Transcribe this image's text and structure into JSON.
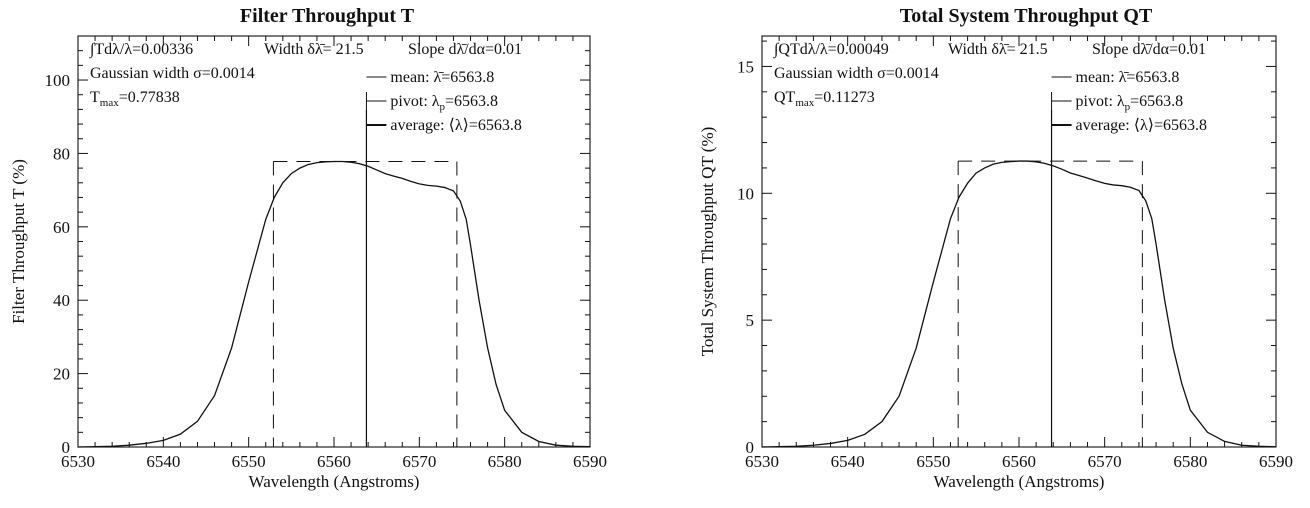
{
  "chart_data": [
    {
      "type": "line",
      "title": "Filter Throughput   T",
      "xlabel": "Wavelength (Angstroms)",
      "ylabel": "Filter Throughput   T   (%)",
      "xlim": [
        6530,
        6590
      ],
      "ylim": [
        0,
        112
      ],
      "x_ticks": [
        6530,
        6540,
        6550,
        6560,
        6570,
        6580,
        6590
      ],
      "y_ticks": [
        0,
        20,
        40,
        60,
        80,
        100
      ],
      "annotations": {
        "integral": "∫Tdλ/λ=0.00336",
        "width": "Width δλ̄=  21.5",
        "slope": "Slope dλ̄/dα=0.01",
        "gaussian": "Gaussian width σ=0.0014",
        "max_prefix": "T",
        "max_sub": "max",
        "max_value": "=0.77838",
        "mean": "mean: λ̄=6563.8",
        "pivot_prefix": "pivot: λ",
        "pivot_sub": "p",
        "pivot_value": "=6563.8",
        "average": "average: ⟨λ⟩=6563.8"
      },
      "markers": {
        "mean": 6563.8,
        "pivot": 6563.8,
        "average": 6563.8,
        "width_low": 6552.9,
        "width_high": 6574.4,
        "width_level": 77.8
      },
      "grid": false,
      "series": [
        {
          "x": [
            6530,
            6534,
            6536,
            6538,
            6540,
            6542,
            6544,
            6546,
            6548,
            6550,
            6552,
            6553,
            6554,
            6555,
            6556,
            6557,
            6558,
            6559,
            6560,
            6561,
            6562,
            6563,
            6564,
            6565,
            6566,
            6567,
            6568,
            6569,
            6570,
            6571,
            6572,
            6573,
            6574,
            6574.8,
            6575.5,
            6576,
            6577,
            6578,
            6579,
            6580,
            6582,
            6584,
            6586,
            6588,
            6590
          ],
          "y": [
            0,
            0.2,
            0.5,
            1.0,
            1.8,
            3.5,
            7.0,
            14,
            27,
            45,
            62,
            68,
            72,
            74.5,
            76,
            77,
            77.5,
            77.7,
            77.8,
            77.8,
            77.6,
            77.2,
            76.5,
            75.5,
            74.5,
            73.8,
            73.2,
            72.4,
            71.7,
            71.3,
            71.1,
            70.7,
            69.8,
            67,
            62,
            55,
            40,
            27,
            17,
            10,
            4,
            1.5,
            0.5,
            0.2,
            0.1
          ]
        }
      ]
    },
    {
      "type": "line",
      "title": "Total System Throughput   QT",
      "xlabel": "Wavelength (Angstroms)",
      "ylabel": "Total System Throughput   QT   (%)",
      "xlim": [
        6530,
        6590
      ],
      "ylim": [
        0,
        16.2
      ],
      "x_ticks": [
        6530,
        6540,
        6550,
        6560,
        6570,
        6580,
        6590
      ],
      "y_ticks": [
        0,
        5,
        10,
        15
      ],
      "annotations": {
        "integral": "∫QTdλ/λ=0.00049",
        "width": "Width δλ̄=  21.5",
        "slope": "Slope dλ̄/dα=0.01",
        "gaussian": "Gaussian width σ=0.0014",
        "max_prefix": "QT",
        "max_sub": "max",
        "max_value": "=0.11273",
        "mean": "mean: λ̄=6563.8",
        "pivot_prefix": "pivot: λ",
        "pivot_sub": "p",
        "pivot_value": "=6563.8",
        "average": "average: ⟨λ⟩=6563.8"
      },
      "markers": {
        "mean": 6563.8,
        "pivot": 6563.8,
        "average": 6563.8,
        "width_low": 6552.9,
        "width_high": 6574.4,
        "width_level": 11.27
      },
      "grid": false,
      "series": [
        {
          "x": [
            6530,
            6534,
            6536,
            6538,
            6540,
            6542,
            6544,
            6546,
            6548,
            6550,
            6552,
            6553,
            6554,
            6555,
            6556,
            6557,
            6558,
            6559,
            6560,
            6561,
            6562,
            6563,
            6564,
            6565,
            6566,
            6567,
            6568,
            6569,
            6570,
            6571,
            6572,
            6573,
            6574,
            6574.8,
            6575.5,
            6576,
            6577,
            6578,
            6579,
            6580,
            6582,
            6584,
            6586,
            6588,
            6590
          ],
          "y": [
            0,
            0.03,
            0.07,
            0.14,
            0.26,
            0.5,
            1.0,
            2.0,
            3.9,
            6.5,
            9.0,
            9.85,
            10.4,
            10.8,
            11.0,
            11.15,
            11.22,
            11.25,
            11.27,
            11.27,
            11.24,
            11.18,
            11.08,
            10.95,
            10.8,
            10.7,
            10.6,
            10.49,
            10.39,
            10.33,
            10.3,
            10.24,
            10.11,
            9.7,
            9.0,
            8.0,
            5.8,
            3.9,
            2.5,
            1.45,
            0.58,
            0.22,
            0.07,
            0.03,
            0.01
          ]
        }
      ]
    }
  ]
}
